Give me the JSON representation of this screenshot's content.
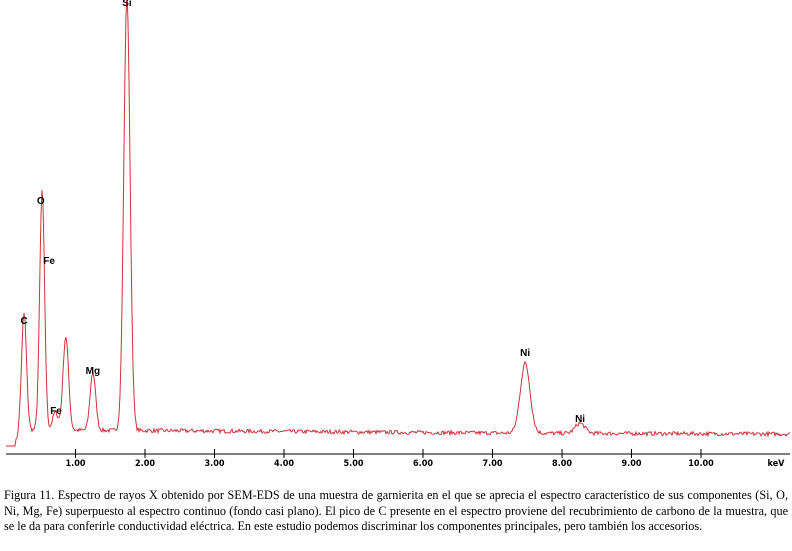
{
  "chart_data": {
    "type": "line",
    "title": "",
    "xlabel": "keV",
    "ylabel": "",
    "xlim": [
      0,
      11.2
    ],
    "ylim": [
      0,
      450
    ],
    "x_ticks": [
      1,
      2,
      3,
      4,
      5,
      6,
      7,
      8,
      9,
      10
    ],
    "x_tick_labels": [
      "1.00",
      "2.00",
      "3.00",
      "4.00",
      "5.00",
      "6.00",
      "7.00",
      "8.00",
      "9.00",
      "10.00"
    ],
    "grid": false,
    "line_color": "#d0313c",
    "background_level": [
      {
        "x": 0.3,
        "y": 16
      },
      {
        "x": 3,
        "y": 15
      },
      {
        "x": 7,
        "y": 13
      },
      {
        "x": 11.2,
        "y": 12
      }
    ],
    "peaks": [
      {
        "element": "C",
        "label": "C",
        "energy": 0.26,
        "intensity": 117,
        "width": 0.035
      },
      {
        "element": "O",
        "label": "O",
        "energy": 0.52,
        "intensity": 240,
        "width": 0.035
      },
      {
        "element": "Fe",
        "label": "Fe",
        "energy": 0.71,
        "intensity": 18,
        "width": 0.04
      },
      {
        "element": "Ni L",
        "label": "",
        "energy": 0.86,
        "intensity": 94,
        "width": 0.04
      },
      {
        "element": "Mg",
        "label": "Mg",
        "energy": 1.25,
        "intensity": 58,
        "width": 0.04
      },
      {
        "element": "Si",
        "label": "Si",
        "energy": 1.74,
        "intensity": 435,
        "width": 0.045
      },
      {
        "element": "Ni Ka",
        "label": "Ni",
        "energy": 7.47,
        "intensity": 70,
        "width": 0.07
      },
      {
        "element": "Ni Kb",
        "label": "Ni",
        "energy": 8.26,
        "intensity": 10,
        "width": 0.07
      }
    ],
    "annotations": [
      {
        "text": "Si",
        "x": 1.74,
        "y": 438
      },
      {
        "text": "O",
        "x": 0.5,
        "y": 240
      },
      {
        "text": "Fe",
        "x": 0.62,
        "y": 180
      },
      {
        "text": "C",
        "x": 0.26,
        "y": 120
      },
      {
        "text": "Mg",
        "x": 1.25,
        "y": 70
      },
      {
        "text": "Fe",
        "x": 0.72,
        "y": 30
      },
      {
        "text": "Ni",
        "x": 7.47,
        "y": 88
      },
      {
        "text": "Ni",
        "x": 8.26,
        "y": 22
      }
    ]
  },
  "caption": "Figura 11. Espectro de rayos X obtenido por SEM-EDS de una muestra de garnierita en el que se aprecia el espectro característico de sus componentes (Si, O, Ni, Mg, Fe) superpuesto al espectro continuo (fondo casi plano). El pico de C presente en el espectro proviene del recubrimiento de carbono de la muestra, que se le da para conferirle conductividad eléctrica. En este estudio podemos discriminar los componentes principales, pero también los accesorios."
}
